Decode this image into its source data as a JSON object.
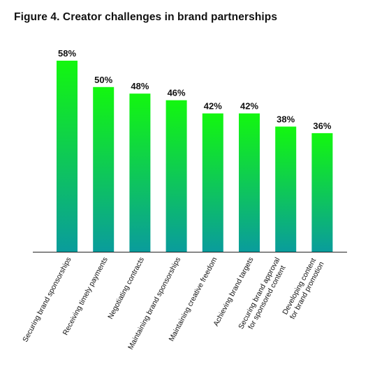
{
  "title": "Figure 4. Creator challenges in brand partnerships",
  "colors": {
    "bar_top": "#13f70f",
    "bar_bottom": "#0a9c9c",
    "axis": "#222222"
  },
  "chart_data": {
    "type": "bar",
    "title": "Figure 4. Creator challenges in brand partnerships",
    "categories": [
      [
        "Securing brand sponsorships"
      ],
      [
        "Receiving timely payments"
      ],
      [
        "Negotiating contracts"
      ],
      [
        "Maintaining brand sponsorships"
      ],
      [
        "Maintaining creative freedom"
      ],
      [
        "Achieving brand targets"
      ],
      [
        "Securing brand approval",
        "for sponsored content"
      ],
      [
        "Developing content",
        "for brand promotion"
      ]
    ],
    "values": [
      58,
      50,
      48,
      46,
      42,
      42,
      38,
      36
    ],
    "value_labels": [
      "58%",
      "50%",
      "48%",
      "46%",
      "42%",
      "42%",
      "38%",
      "36%"
    ],
    "unit": "%",
    "ylim": [
      0,
      58
    ],
    "grid": false,
    "legend": "none"
  }
}
